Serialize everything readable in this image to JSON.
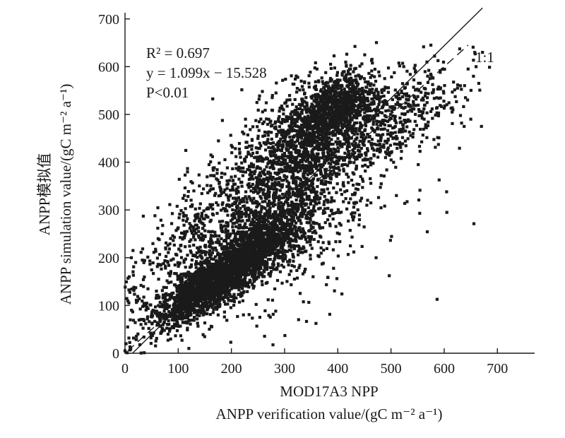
{
  "chart_data": {
    "type": "scatter",
    "title": "",
    "xlabel_lines": [
      "MOD17A3 NPP",
      "ANPP verification value/(gC m⁻² a⁻¹)"
    ],
    "ylabel_lines": [
      "ANPP模拟值",
      "ANPP simulation value/(gC m⁻² a⁻¹)"
    ],
    "xlim": [
      0,
      770
    ],
    "ylim": [
      0,
      710
    ],
    "x_ticks": [
      0,
      100,
      200,
      300,
      400,
      500,
      600,
      700
    ],
    "y_ticks": [
      0,
      100,
      200,
      300,
      400,
      500,
      600,
      700
    ],
    "x_tick_labels": [
      "0",
      "100",
      "200",
      "300",
      "400",
      "500",
      "600",
      "700"
    ],
    "y_tick_labels": [
      "0",
      "100",
      "200",
      "300",
      "400",
      "500",
      "600",
      "700"
    ],
    "grid": false,
    "marker": "square",
    "point_color": "#1a1a1a",
    "annotations": {
      "r2": "R² = 0.697",
      "equation": "y = 1.099x − 15.528",
      "p_value": "P<0.01",
      "one_to_one_label": "1:1"
    },
    "fit_line": {
      "slope": 1.099,
      "intercept": -15.528,
      "x_range": [
        14,
        672
      ],
      "style": "solid"
    },
    "identity_line": {
      "slope": 1,
      "intercept": 0,
      "x_range": [
        5,
        645
      ],
      "style": "dashed"
    },
    "clusters": [
      {
        "cx": 175,
        "cy": 155,
        "sx": 60,
        "sy": 50,
        "corr": 0.85,
        "n": 2300
      },
      {
        "cx": 265,
        "cy": 245,
        "sx": 55,
        "sy": 50,
        "corr": 0.6,
        "n": 900
      },
      {
        "cx": 330,
        "cy": 430,
        "sx": 70,
        "sy": 75,
        "corr": 0.55,
        "n": 1500
      },
      {
        "cx": 395,
        "cy": 515,
        "sx": 35,
        "sy": 35,
        "corr": 0.4,
        "n": 700
      },
      {
        "cx": 470,
        "cy": 470,
        "sx": 70,
        "sy": 60,
        "corr": 0.6,
        "n": 500
      },
      {
        "cx": 135,
        "cy": 245,
        "sx": 50,
        "sy": 75,
        "corr": 0.6,
        "n": 350
      },
      {
        "cx": 305,
        "cy": 260,
        "sx": 110,
        "sy": 110,
        "corr": 0.5,
        "n": 500
      },
      {
        "cx": 570,
        "cy": 540,
        "sx": 45,
        "sy": 55,
        "corr": 0.5,
        "n": 80
      },
      {
        "cx": 15,
        "cy": 110,
        "sx": 12,
        "sy": 50,
        "corr": 0.2,
        "n": 40
      }
    ],
    "point_sampling": {
      "method": "bivariate-normal clusters",
      "seed": 7
    },
    "outlier_points": [
      {
        "x": 10,
        "y": 70
      },
      {
        "x": 5,
        "y": 55
      },
      {
        "x": 8,
        "y": 160
      },
      {
        "x": 12,
        "y": 200
      },
      {
        "x": 15,
        "y": 215
      },
      {
        "x": 20,
        "y": 190
      },
      {
        "x": 2,
        "y": 20
      },
      {
        "x": 0,
        "y": 5
      },
      {
        "x": 120,
        "y": 10
      },
      {
        "x": 605,
        "y": 295
      },
      {
        "x": 650,
        "y": 490
      },
      {
        "x": 670,
        "y": 475
      },
      {
        "x": 672,
        "y": 630
      },
      {
        "x": 665,
        "y": 565
      },
      {
        "x": 640,
        "y": 535
      },
      {
        "x": 615,
        "y": 505
      },
      {
        "x": 575,
        "y": 645
      },
      {
        "x": 655,
        "y": 580
      },
      {
        "x": 625,
        "y": 555
      },
      {
        "x": 660,
        "y": 600
      }
    ]
  }
}
